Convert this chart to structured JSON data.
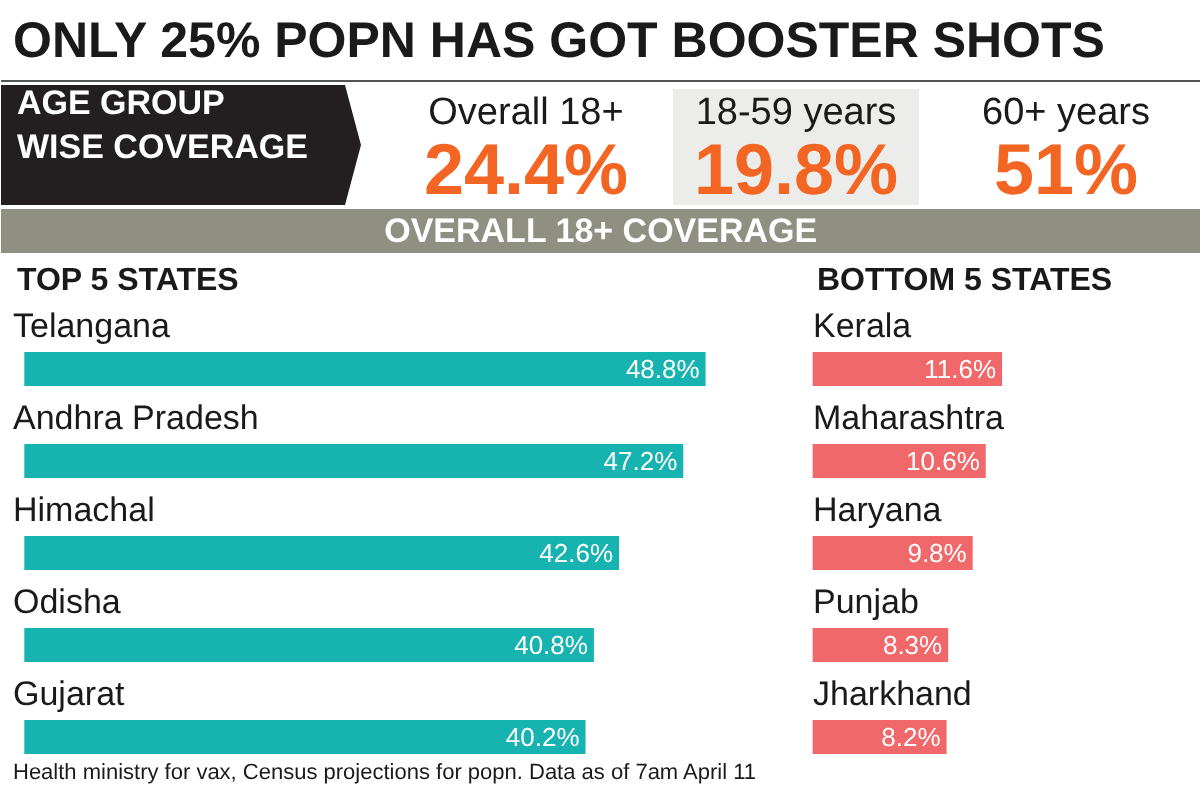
{
  "chart_data": [
    {
      "type": "other",
      "title": "ONLY 25% POPN HAS GOT BOOSTER SHOTS",
      "ylabel": "AGE GROUP\nWISE COVERAGE",
      "categories": [
        "Overall 18+",
        "18-59 years",
        "60+ years"
      ],
      "values": [
        24.4,
        19.8,
        51
      ],
      "value_labels": [
        "24.4%",
        "19.8%",
        "51%"
      ],
      "annotations": [
        "OVERALL 18+ COVERAGE"
      ]
    },
    {
      "type": "bar",
      "orientation": "horizontal",
      "title": "TOP 5 STATES",
      "categories": [
        "Telangana",
        "Andhra Pradesh",
        "Himachal",
        "Odisha",
        "Gujarat"
      ],
      "values": [
        48.8,
        47.2,
        42.6,
        40.8,
        40.2
      ],
      "value_labels": [
        "48.8%",
        "47.2%",
        "42.6%",
        "40.8%",
        "40.2%"
      ],
      "color": "#17b3b0",
      "grid": false,
      "tick_labels": false,
      "annotations": [
        "Health ministry for vax, Census projections for popn. Data as of 7am April 11"
      ]
    },
    {
      "type": "bar",
      "orientation": "horizontal",
      "title": "BOTTOM 5 STATES",
      "categories": [
        "Kerala",
        "Maharashtra",
        "Haryana",
        "Punjab",
        "Jharkhand"
      ],
      "values": [
        11.6,
        10.6,
        9.8,
        8.3,
        8.2
      ],
      "value_labels": [
        "11.6%",
        "10.6%",
        "9.8%",
        "8.3%",
        "8.2%"
      ],
      "color": "#f0686a",
      "grid": false,
      "tick_labels": false
    }
  ]
}
